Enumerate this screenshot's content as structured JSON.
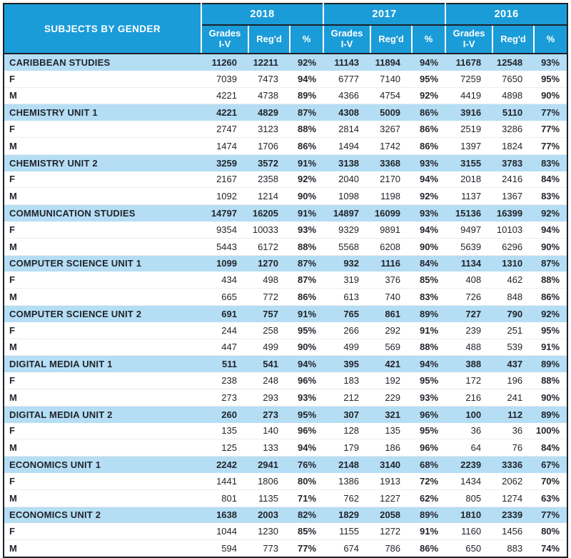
{
  "colors": {
    "header_blue": "#1a9cd8",
    "subject_row_blue": "#b5def5",
    "outer_border": "#1d2127",
    "text": "#22252b"
  },
  "table": {
    "corner_label": "SUBJECTS BY GENDER",
    "years": [
      "2018",
      "2017",
      "2016"
    ],
    "sub_headers": [
      "Grades I-V",
      "Reg'd",
      "%"
    ],
    "gender_labels": {
      "f": "F",
      "m": "M"
    },
    "subjects": [
      {
        "name": "CARIBBEAN STUDIES",
        "total": [
          "11260",
          "12211",
          "92%",
          "11143",
          "11894",
          "94%",
          "11678",
          "12548",
          "93%"
        ],
        "f": [
          "7039",
          "7473",
          "94%",
          "6777",
          "7140",
          "95%",
          "7259",
          "7650",
          "95%"
        ],
        "m": [
          "4221",
          "4738",
          "89%",
          "4366",
          "4754",
          "92%",
          "4419",
          "4898",
          "90%"
        ]
      },
      {
        "name": "CHEMISTRY UNIT 1",
        "total": [
          "4221",
          "4829",
          "87%",
          "4308",
          "5009",
          "86%",
          "3916",
          "5110",
          "77%"
        ],
        "f": [
          "2747",
          "3123",
          "88%",
          "2814",
          "3267",
          "86%",
          "2519",
          "3286",
          "77%"
        ],
        "m": [
          "1474",
          "1706",
          "86%",
          "1494",
          "1742",
          "86%",
          "1397",
          "1824",
          "77%"
        ]
      },
      {
        "name": "CHEMISTRY UNIT 2",
        "total": [
          "3259",
          "3572",
          "91%",
          "3138",
          "3368",
          "93%",
          "3155",
          "3783",
          "83%"
        ],
        "f": [
          "2167",
          "2358",
          "92%",
          "2040",
          "2170",
          "94%",
          "2018",
          "2416",
          "84%"
        ],
        "m": [
          "1092",
          "1214",
          "90%",
          "1098",
          "1198",
          "92%",
          "1137",
          "1367",
          "83%"
        ]
      },
      {
        "name": "COMMUNICATION STUDIES",
        "total": [
          "14797",
          "16205",
          "91%",
          "14897",
          "16099",
          "93%",
          "15136",
          "16399",
          "92%"
        ],
        "f": [
          "9354",
          "10033",
          "93%",
          "9329",
          "9891",
          "94%",
          "9497",
          "10103",
          "94%"
        ],
        "m": [
          "5443",
          "6172",
          "88%",
          "5568",
          "6208",
          "90%",
          "5639",
          "6296",
          "90%"
        ]
      },
      {
        "name": "COMPUTER SCIENCE UNIT 1",
        "total": [
          "1099",
          "1270",
          "87%",
          "932",
          "1116",
          "84%",
          "1134",
          "1310",
          "87%"
        ],
        "f": [
          "434",
          "498",
          "87%",
          "319",
          "376",
          "85%",
          "408",
          "462",
          "88%"
        ],
        "m": [
          "665",
          "772",
          "86%",
          "613",
          "740",
          "83%",
          "726",
          "848",
          "86%"
        ]
      },
      {
        "name": "COMPUTER SCIENCE UNIT 2",
        "total": [
          "691",
          "757",
          "91%",
          "765",
          "861",
          "89%",
          "727",
          "790",
          "92%"
        ],
        "f": [
          "244",
          "258",
          "95%",
          "266",
          "292",
          "91%",
          "239",
          "251",
          "95%"
        ],
        "m": [
          "447",
          "499",
          "90%",
          "499",
          "569",
          "88%",
          "488",
          "539",
          "91%"
        ]
      },
      {
        "name": "DIGITAL MEDIA UNIT 1",
        "total": [
          "511",
          "541",
          "94%",
          "395",
          "421",
          "94%",
          "388",
          "437",
          "89%"
        ],
        "f": [
          "238",
          "248",
          "96%",
          "183",
          "192",
          "95%",
          "172",
          "196",
          "88%"
        ],
        "m": [
          "273",
          "293",
          "93%",
          "212",
          "229",
          "93%",
          "216",
          "241",
          "90%"
        ]
      },
      {
        "name": "DIGITAL MEDIA UNIT 2",
        "total": [
          "260",
          "273",
          "95%",
          "307",
          "321",
          "96%",
          "100",
          "112",
          "89%"
        ],
        "f": [
          "135",
          "140",
          "96%",
          "128",
          "135",
          "95%",
          "36",
          "36",
          "100%"
        ],
        "m": [
          "125",
          "133",
          "94%",
          "179",
          "186",
          "96%",
          "64",
          "76",
          "84%"
        ]
      },
      {
        "name": "ECONOMICS UNIT 1",
        "total": [
          "2242",
          "2941",
          "76%",
          "2148",
          "3140",
          "68%",
          "2239",
          "3336",
          "67%"
        ],
        "f": [
          "1441",
          "1806",
          "80%",
          "1386",
          "1913",
          "72%",
          "1434",
          "2062",
          "70%"
        ],
        "m": [
          "801",
          "1135",
          "71%",
          "762",
          "1227",
          "62%",
          "805",
          "1274",
          "63%"
        ]
      },
      {
        "name": "ECONOMICS UNIT 2",
        "total": [
          "1638",
          "2003",
          "82%",
          "1829",
          "2058",
          "89%",
          "1810",
          "2339",
          "77%"
        ],
        "f": [
          "1044",
          "1230",
          "85%",
          "1155",
          "1272",
          "91%",
          "1160",
          "1456",
          "80%"
        ],
        "m": [
          "594",
          "773",
          "77%",
          "674",
          "786",
          "86%",
          "650",
          "883",
          "74%"
        ]
      }
    ]
  }
}
